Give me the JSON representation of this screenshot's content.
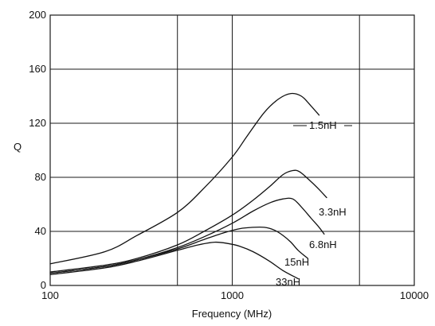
{
  "chart_data": {
    "type": "line",
    "title": "",
    "xlabel": "Frequency (MHz)",
    "ylabel": "Q",
    "x_scale": "log",
    "xlim": [
      100,
      10000
    ],
    "ylim": [
      0,
      200
    ],
    "grid": true,
    "x_ticks": [
      100,
      1000,
      10000
    ],
    "x_tick_labels": [
      "100",
      "1000",
      "10000"
    ],
    "x_gridlines": [
      500,
      1000,
      5000
    ],
    "y_ticks": [
      0,
      40,
      80,
      120,
      160,
      200
    ],
    "y_tick_labels": [
      "0",
      "40",
      "80",
      "120",
      "160",
      "200"
    ],
    "series": [
      {
        "name": "1.5nH",
        "points": [
          [
            100,
            16
          ],
          [
            200,
            25
          ],
          [
            300,
            37
          ],
          [
            500,
            54
          ],
          [
            700,
            72
          ],
          [
            1000,
            95
          ],
          [
            1200,
            110
          ],
          [
            1500,
            128
          ],
          [
            1800,
            138
          ],
          [
            2100,
            142
          ],
          [
            2400,
            140
          ],
          [
            2700,
            133
          ],
          [
            3000,
            126
          ]
        ]
      },
      {
        "name": "3.3nH",
        "points": [
          [
            100,
            10
          ],
          [
            200,
            15
          ],
          [
            300,
            20
          ],
          [
            500,
            30
          ],
          [
            700,
            40
          ],
          [
            1000,
            52
          ],
          [
            1300,
            63
          ],
          [
            1600,
            73
          ],
          [
            1900,
            82
          ],
          [
            2150,
            85
          ],
          [
            2350,
            84
          ],
          [
            2700,
            77
          ],
          [
            3000,
            71
          ],
          [
            3300,
            65
          ]
        ]
      },
      {
        "name": "6.8nH",
        "points": [
          [
            100,
            9
          ],
          [
            200,
            14
          ],
          [
            300,
            19
          ],
          [
            500,
            28
          ],
          [
            700,
            36
          ],
          [
            1000,
            46
          ],
          [
            1300,
            55
          ],
          [
            1600,
            61
          ],
          [
            1900,
            64
          ],
          [
            2150,
            64
          ],
          [
            2400,
            58
          ],
          [
            2700,
            50
          ],
          [
            3000,
            43
          ],
          [
            3200,
            38
          ]
        ]
      },
      {
        "name": "15nH",
        "points": [
          [
            100,
            9
          ],
          [
            200,
            14
          ],
          [
            300,
            19
          ],
          [
            500,
            27
          ],
          [
            700,
            34
          ],
          [
            900,
            39
          ],
          [
            1100,
            42
          ],
          [
            1300,
            43
          ],
          [
            1500,
            43
          ],
          [
            1700,
            41
          ],
          [
            1900,
            37
          ],
          [
            2100,
            32
          ],
          [
            2300,
            26
          ],
          [
            2600,
            20
          ]
        ]
      },
      {
        "name": "33nH",
        "points": [
          [
            100,
            8
          ],
          [
            200,
            13
          ],
          [
            300,
            18
          ],
          [
            500,
            26
          ],
          [
            650,
            30
          ],
          [
            800,
            32
          ],
          [
            950,
            31
          ],
          [
            1100,
            29
          ],
          [
            1300,
            25
          ],
          [
            1600,
            18
          ],
          [
            1900,
            11
          ],
          [
            2300,
            5
          ]
        ]
      }
    ]
  }
}
